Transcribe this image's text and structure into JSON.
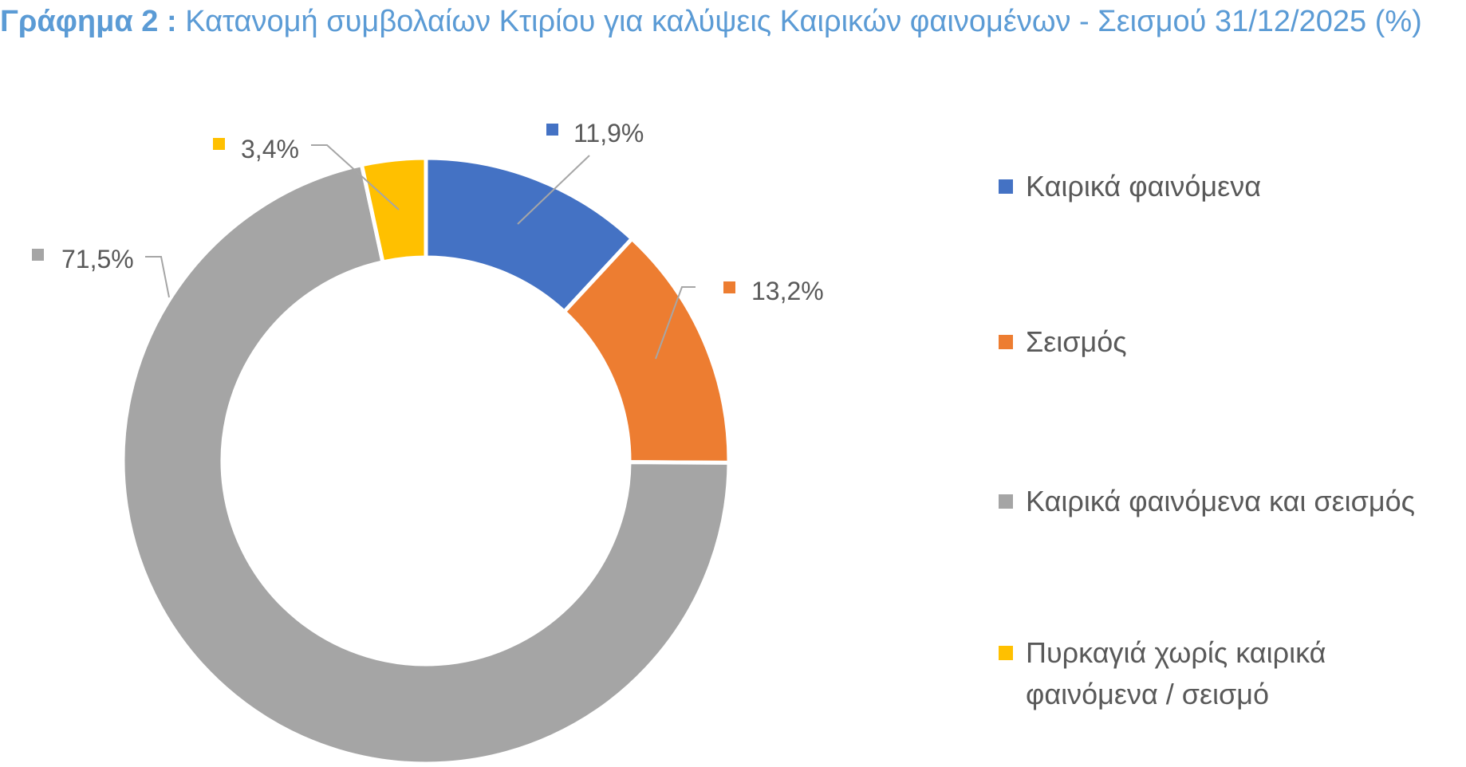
{
  "title": {
    "lead": "Γράφημα 2 :",
    "rest": "Κατανομή συμβολαίων Κτιρίου για καλύψεις Καιρικών φαινομένων - Σεισμού 31/12/2025 (%)"
  },
  "colors": {
    "title": "#5b9bd5",
    "text": "#595959",
    "leader": "#a6a6a6",
    "series": [
      "#4472c4",
      "#ed7d31",
      "#a5a5a5",
      "#ffc000"
    ]
  },
  "chart_data": {
    "type": "pie",
    "variant": "doughnut",
    "start_angle_deg": 0,
    "direction": "clockwise",
    "legend_position": "right",
    "categories": [
      "Καιρικά φαινόμενα",
      "Σεισμός",
      "Καιρικά φαινόμενα και σεισμός",
      "Πυρκαγιά χωρίς καιρικά φαινόμενα / σεισμό"
    ],
    "values": [
      11.9,
      13.2,
      71.5,
      3.4
    ],
    "unit": "%",
    "data_labels": [
      "11,9%",
      "13,2%",
      "71,5%",
      "3,4%"
    ]
  },
  "legend": {
    "items": [
      {
        "lines": [
          "Καιρικά φαινόμενα"
        ]
      },
      {
        "lines": [
          "Σεισμός"
        ]
      },
      {
        "lines": [
          "Καιρικά φαινόμενα και σεισμός"
        ]
      },
      {
        "lines": [
          "Πυρκαγιά χωρίς καιρικά",
          "φαινόμενα / σεισμό"
        ]
      }
    ]
  }
}
